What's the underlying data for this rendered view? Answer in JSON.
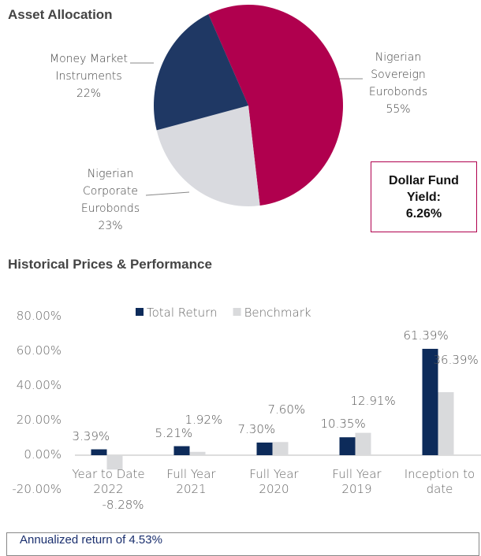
{
  "headings": {
    "allocation": "Asset Allocation",
    "performance": "Historical Prices & Performance"
  },
  "yield_box": {
    "label": "Dollar Fund Yield:",
    "value": "6.26%"
  },
  "footer": "Annualized return of 4.53%",
  "chart_data": [
    {
      "type": "pie",
      "categories": [
        "Nigerian Sovereign Eurobonds",
        "Nigerian Corporate Eurobonds",
        "Money Market Instruments"
      ],
      "values": [
        55,
        23,
        22
      ],
      "value_labels": [
        "55%",
        "23%",
        "22%"
      ],
      "colors": [
        "#b0004e",
        "#d9dadf",
        "#1f3864"
      ]
    },
    {
      "type": "bar",
      "categories": [
        "Year to Date 2022",
        "Full Year 2021",
        "Full Year 2020",
        "Full Year 2019",
        "Inception to date"
      ],
      "series": [
        {
          "name": "Total Return",
          "color": "#0d2b5a",
          "values": [
            3.39,
            5.21,
            7.3,
            10.35,
            61.39
          ],
          "value_labels": [
            "3.39%",
            "5.21%",
            "7.30%",
            "10.35%",
            "61.39%"
          ]
        },
        {
          "name": "Benchmark",
          "color": "#d9dadc",
          "values": [
            -8.28,
            1.92,
            7.6,
            12.91,
            36.39
          ],
          "value_labels": [
            "-8.28%",
            "1.92%",
            "7.60%",
            "12.91%",
            "36.39%"
          ]
        }
      ],
      "ylim": [
        -20,
        80
      ],
      "yticks": [
        {
          "value": -20,
          "label": "-20.00%"
        },
        {
          "value": 0,
          "label": "0.00%"
        },
        {
          "value": 20,
          "label": "20.00%"
        },
        {
          "value": 40,
          "label": "40.00%"
        },
        {
          "value": 60,
          "label": "60.00%"
        },
        {
          "value": 80,
          "label": "80.00%"
        }
      ],
      "legend": "top"
    }
  ]
}
